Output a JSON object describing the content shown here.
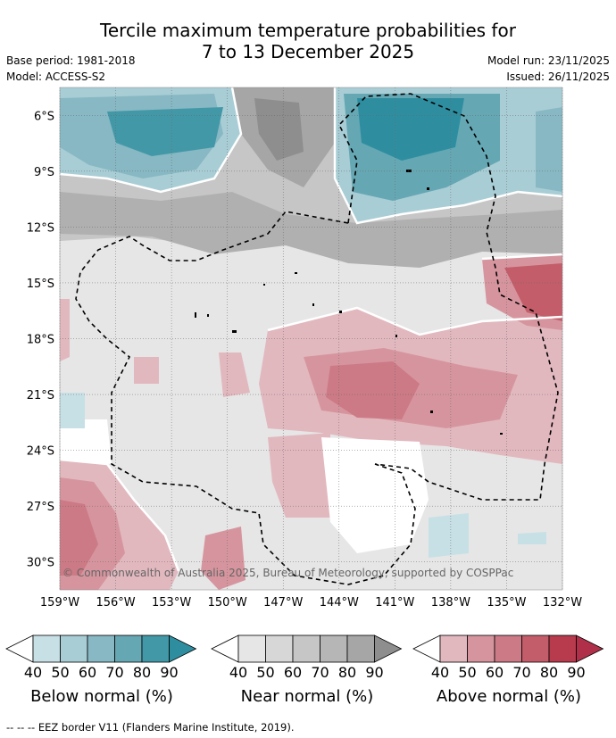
{
  "title_line1": "Tercile maximum temperature probabilities for",
  "title_line2": "7 to 13 December 2025",
  "base_period": "Base period: 1981-2018",
  "model": "Model: ACCESS-S2",
  "model_run": "Model run: 23/11/2025",
  "issued": "Issued: 26/11/2025",
  "map": {
    "lat_labels": [
      "6°S",
      "9°S",
      "12°S",
      "15°S",
      "18°S",
      "21°S",
      "24°S",
      "27°S",
      "30°S"
    ],
    "lon_labels": [
      "159°W",
      "156°W",
      "153°W",
      "150°W",
      "147°W",
      "144°W",
      "141°W",
      "138°W",
      "135°W",
      "132°W"
    ],
    "copyright": "© Commonwealth of Australia 2025, Bureau of Meteorology, supported by COSPPac"
  },
  "colorbars": [
    {
      "label": "Below normal (%)",
      "ticks": [
        "40",
        "50",
        "60",
        "70",
        "80",
        "90"
      ],
      "colors": [
        "#c7e0e6",
        "#a8cdd5",
        "#87b8c3",
        "#66a7b4",
        "#4398a8",
        "#2e8ea0"
      ]
    },
    {
      "label": "Near normal (%)",
      "ticks": [
        "40",
        "50",
        "60",
        "70",
        "80",
        "90"
      ],
      "colors": [
        "#e6e6e6",
        "#d7d7d7",
        "#c6c6c6",
        "#b6b6b6",
        "#a6a6a6",
        "#8e8e8e"
      ]
    },
    {
      "label": "Above normal (%)",
      "ticks": [
        "40",
        "50",
        "60",
        "70",
        "80",
        "90"
      ],
      "colors": [
        "#e2b8bf",
        "#d6959e",
        "#cc7a85",
        "#c35d6a",
        "#b73a4d",
        "#b0304a"
      ]
    }
  ],
  "footer": "--  --  -- EEZ border V11 (Flanders Marine Institute, 2019)."
}
